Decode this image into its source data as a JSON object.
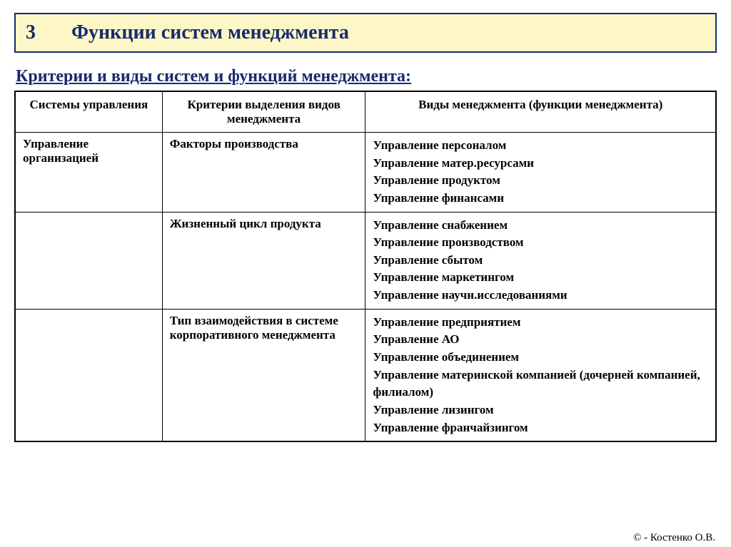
{
  "banner": {
    "number": "3",
    "title": "Функции систем менеджмента",
    "bg": "#fdf7c8",
    "border": "#1a2a6c",
    "textColor": "#1a2a6c"
  },
  "subtitle": "Критерии и виды систем и функций менеджмента:",
  "table": {
    "headers": {
      "col1": "Системы управления",
      "col2": "Критерии выделения видов менеджмента",
      "col3": "Виды менеджмента (функции менеджмента)"
    },
    "rows": [
      {
        "system": "Управление организацией",
        "criteria": "Факторы производства",
        "types": [
          "Управление персоналом",
          "Управление матер.ресурсами",
          "Управление продуктом",
          "Управление финансами"
        ]
      },
      {
        "system": "",
        "criteria": "Жизненный цикл продукта",
        "types": [
          "Управление снабжением",
          "Управление производством",
          "Управление сбытом",
          "Управление маркетингом",
          "Управление научн.исследованиями"
        ]
      },
      {
        "system": "",
        "criteria": "Тип взаимодействия в системе корпоративного менеджмента",
        "types": [
          "Управление предприятием",
          "Управление АО",
          "Управление объединением",
          "Управление материнской компанией (дочерней компанией, филиалом)",
          "Управление лизингом",
          "Управление франчайзингом"
        ]
      }
    ]
  },
  "footer": "© - Костенко О.В.",
  "style": {
    "fontFamily": "Times New Roman",
    "bodyBg": "#ffffff",
    "borderColor": "#000000",
    "subtitleColor": "#1a2a6c",
    "cellFontSize": 17,
    "headerFontSize": 17,
    "bannerFontSize": 28
  }
}
